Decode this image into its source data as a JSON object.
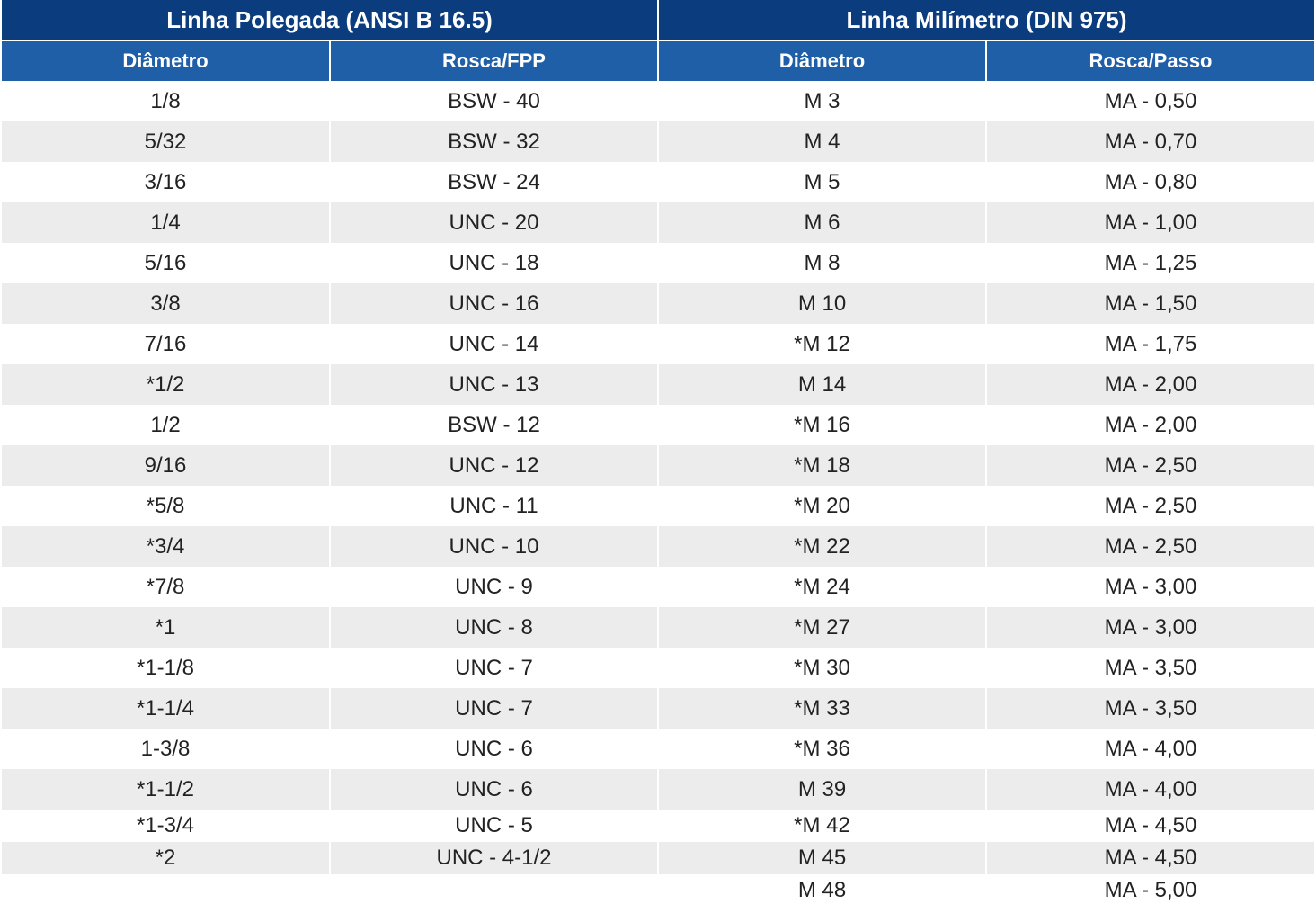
{
  "headers": {
    "group_left": "Linha Polegada (ANSI B 16.5)",
    "group_right": "Linha Milímetro (DIN 975)",
    "col1": "Diâmetro",
    "col2": "Rosca/FPP",
    "col3": "Diâmetro",
    "col4": "Rosca/Passo"
  },
  "rows": [
    [
      "1/8",
      "BSW - 40",
      "M 3",
      "MA - 0,50"
    ],
    [
      "5/32",
      "BSW - 32",
      "M 4",
      "MA - 0,70"
    ],
    [
      "3/16",
      "BSW - 24",
      "M 5",
      "MA - 0,80"
    ],
    [
      "1/4",
      "UNC - 20",
      "M 6",
      "MA - 1,00"
    ],
    [
      "5/16",
      "UNC - 18",
      "M 8",
      "MA - 1,25"
    ],
    [
      "3/8",
      "UNC - 16",
      "M 10",
      "MA - 1,50"
    ],
    [
      "7/16",
      "UNC - 14",
      "*M 12",
      "MA - 1,75"
    ],
    [
      "*1/2",
      "UNC - 13",
      "M 14",
      "MA - 2,00"
    ],
    [
      "1/2",
      "BSW - 12",
      "*M 16",
      "MA - 2,00"
    ],
    [
      "9/16",
      "UNC - 12",
      "*M 18",
      "MA - 2,50"
    ],
    [
      "*5/8",
      "UNC - 11",
      "*M 20",
      "MA - 2,50"
    ],
    [
      "*3/4",
      "UNC - 10",
      "*M 22",
      "MA - 2,50"
    ],
    [
      "*7/8",
      "UNC - 9",
      "*M 24",
      "MA - 3,00"
    ],
    [
      "*1",
      "UNC - 8",
      "*M 27",
      "MA - 3,00"
    ],
    [
      "*1-1/8",
      "UNC - 7",
      "*M 30",
      "MA - 3,50"
    ],
    [
      "*1-1/4",
      "UNC - 7",
      "*M 33",
      "MA - 3,50"
    ],
    [
      "1-3/8",
      "UNC - 6",
      "*M 36",
      "MA - 4,00"
    ],
    [
      "*1-1/2",
      "UNC - 6",
      "M 39",
      "MA - 4,00"
    ],
    [
      "*1-3/4",
      "UNC - 5",
      "*M 42",
      "MA - 4,50"
    ],
    [
      "*2",
      "UNC - 4-1/2",
      "M 45",
      "MA - 4,50"
    ],
    [
      "",
      "",
      "M 48",
      "MA - 5,00"
    ]
  ]
}
